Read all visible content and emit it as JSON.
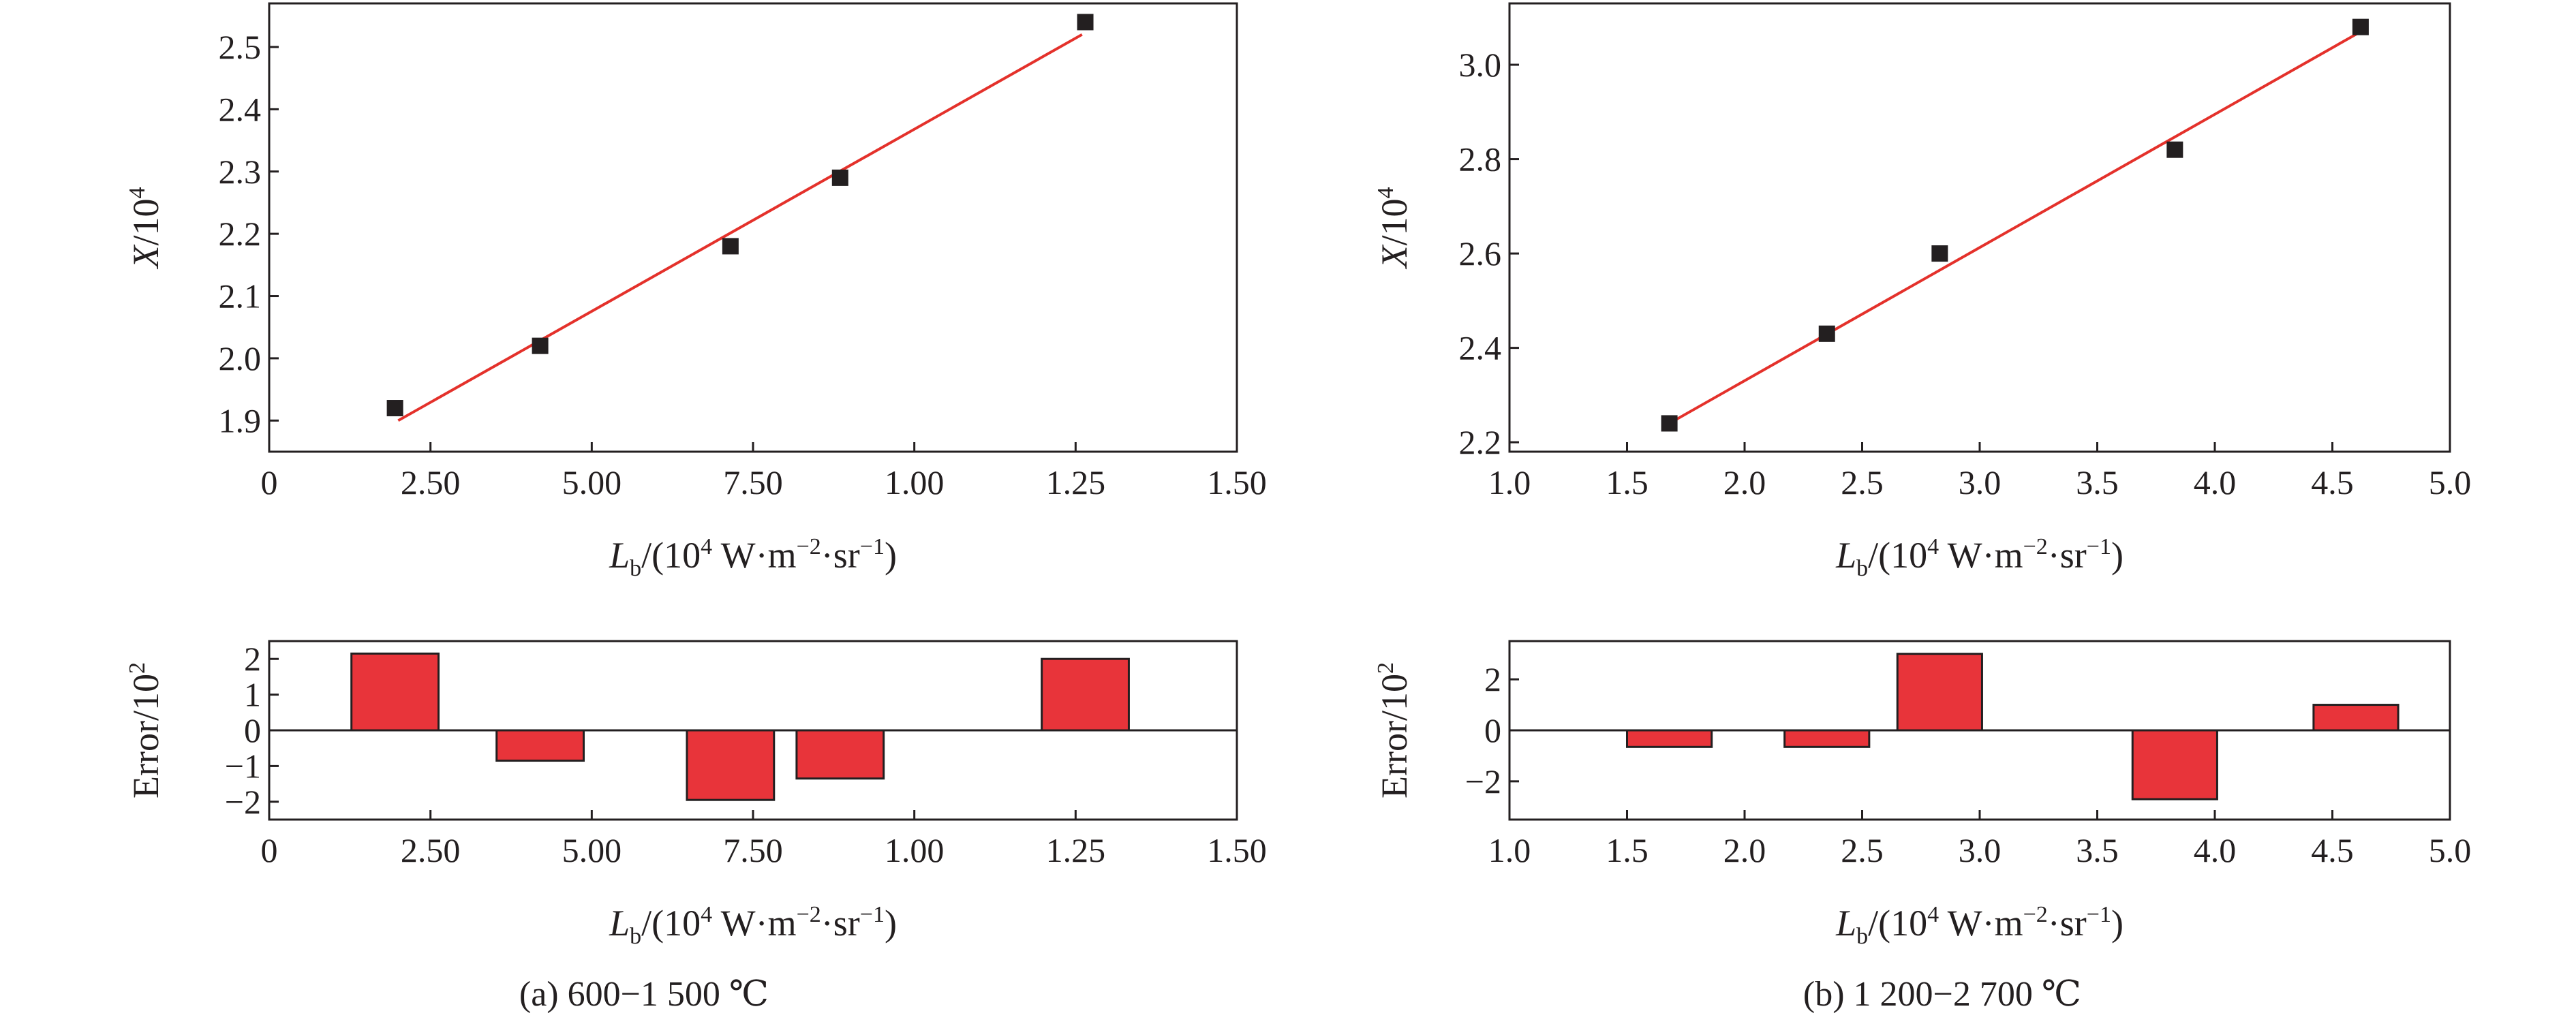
{
  "chart_data": [
    {
      "id": "a-top",
      "type": "scatter",
      "ylabel": "X/10^4",
      "ylabel_parts": {
        "var": "X",
        "text": "/10",
        "sup": "4"
      },
      "xlabel": "L_b/(10^4 W·m^-2·sr^-1)",
      "x_tick_labels": [
        "0",
        "2.50",
        "5.00",
        "7.50",
        "1.00",
        "1.25",
        "1.50"
      ],
      "xlim": [
        0,
        15
      ],
      "ylim": [
        1.85,
        2.57
      ],
      "y_ticks": [
        1.9,
        2.0,
        2.1,
        2.2,
        2.3,
        2.4,
        2.5
      ],
      "y_tick_labels": [
        "1.9",
        "2.0",
        "2.1",
        "2.2",
        "2.3",
        "2.4",
        "2.5"
      ],
      "points": [
        [
          1.95,
          1.92
        ],
        [
          4.2,
          2.02
        ],
        [
          7.15,
          2.18
        ],
        [
          8.85,
          2.29
        ],
        [
          12.65,
          2.54
        ]
      ],
      "fit_line": [
        [
          2.0,
          1.9
        ],
        [
          12.6,
          2.52
        ]
      ],
      "marker_color": "#231f20",
      "line_color": "#e4312b",
      "grid": false,
      "legend": "none"
    },
    {
      "id": "a-bottom",
      "type": "bar",
      "ylabel": "Error/10^2",
      "ylabel_parts": {
        "text": "Error/10",
        "sup": "2"
      },
      "xlabel": "L_b/(10^4 W·m^-2·sr^-1)",
      "x_tick_labels": [
        "0",
        "2.50",
        "5.00",
        "7.50",
        "1.00",
        "1.25",
        "1.50"
      ],
      "xlim": [
        0,
        15
      ],
      "ylim": [
        -2.5,
        2.5
      ],
      "y_ticks": [
        -2,
        -1,
        0,
        1,
        2
      ],
      "y_tick_labels": [
        "−2",
        "−1",
        "0",
        "1",
        "2"
      ],
      "bar_width": 1.35,
      "x": [
        1.95,
        4.2,
        7.15,
        8.85,
        12.65
      ],
      "values": [
        2.15,
        -0.85,
        -1.95,
        -1.35,
        2.0
      ],
      "bar_color": "#e8343a",
      "grid": false,
      "legend": "none"
    },
    {
      "id": "b-top",
      "type": "scatter",
      "ylabel": "X/10^4",
      "ylabel_parts": {
        "var": "X",
        "text": "/10",
        "sup": "4"
      },
      "xlabel": "L_b/(10^4 W·m^-2·sr^-1)",
      "x_tick_labels": [
        "1.0",
        "1.5",
        "2.0",
        "2.5",
        "3.0",
        "3.5",
        "4.0",
        "4.5",
        "5.0"
      ],
      "xlim": [
        1.0,
        5.0
      ],
      "ylim": [
        2.18,
        3.13
      ],
      "y_ticks": [
        2.2,
        2.4,
        2.6,
        2.8,
        3.0
      ],
      "y_tick_labels": [
        "2.2",
        "2.4",
        "2.6",
        "2.8",
        "3.0"
      ],
      "points": [
        [
          1.68,
          2.24
        ],
        [
          2.35,
          2.43
        ],
        [
          2.83,
          2.6
        ],
        [
          3.83,
          2.82
        ],
        [
          4.62,
          3.08
        ]
      ],
      "fit_line": [
        [
          1.68,
          2.24
        ],
        [
          4.62,
          3.07
        ]
      ],
      "marker_color": "#231f20",
      "line_color": "#e4312b",
      "grid": false,
      "legend": "none"
    },
    {
      "id": "b-bottom",
      "type": "bar",
      "ylabel": "Error/10^2",
      "ylabel_parts": {
        "text": "Error/10",
        "sup": "2"
      },
      "xlabel": "L_b/(10^4 W·m^-2·sr^-1)",
      "x_tick_labels": [
        "1.0",
        "1.5",
        "2.0",
        "2.5",
        "3.0",
        "3.5",
        "4.0",
        "4.5",
        "5.0"
      ],
      "xlim": [
        1.0,
        5.0
      ],
      "ylim": [
        -3.5,
        3.5
      ],
      "y_ticks": [
        -2,
        0,
        2
      ],
      "y_tick_labels": [
        "−2",
        "0",
        "2"
      ],
      "bar_width": 0.36,
      "x": [
        1.68,
        2.35,
        2.83,
        3.83,
        4.6
      ],
      "values": [
        -0.65,
        -0.65,
        3.0,
        -2.7,
        1.0
      ],
      "bar_color": "#e8343a",
      "grid": false,
      "legend": "none"
    }
  ],
  "captions": {
    "a": "(a) 600−1 500 ℃",
    "b": "(b) 1 200−2 700 ℃"
  }
}
